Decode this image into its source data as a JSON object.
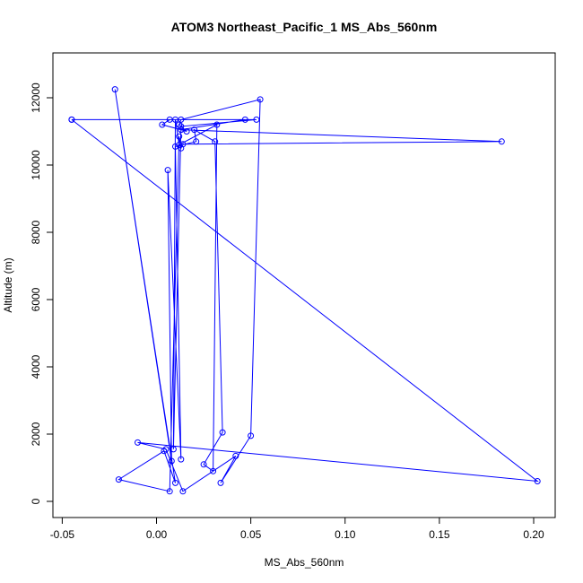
{
  "chart_data": {
    "type": "line",
    "title": "ATOM3 Northeast_Pacific_1 MS_Abs_560nm",
    "xlabel": "MS_Abs_560nm",
    "ylabel": "Altitude (m)",
    "xlim": [
      -0.05,
      0.2
    ],
    "ylim": [
      0,
      12000
    ],
    "x_ticks": [
      -0.05,
      0.0,
      0.05,
      0.1,
      0.15,
      0.2
    ],
    "x_tick_labels": [
      "-0.05",
      "0.00",
      "0.05",
      "0.10",
      "0.15",
      "0.20"
    ],
    "y_ticks": [
      0,
      2000,
      4000,
      6000,
      8000,
      10000,
      12000
    ],
    "y_tick_labels": [
      "0",
      "2000",
      "4000",
      "6000",
      "8000",
      "10000",
      "12000"
    ],
    "grid": false,
    "markers": "open-circle",
    "color": "#0000ff",
    "series": [
      {
        "points": [
          [
            -0.045,
            11350
          ],
          [
            0.047,
            11350
          ],
          [
            0.013,
            11050
          ],
          [
            0.183,
            10700
          ],
          [
            0.014,
            10620
          ],
          [
            0.013,
            10500
          ],
          [
            0.012,
            10850
          ],
          [
            0.007,
            300
          ],
          [
            -0.02,
            650
          ],
          [
            0.004,
            1500
          ],
          [
            0.01,
            550
          ],
          [
            -0.022,
            12250
          ],
          [
            0.008,
            1200
          ],
          [
            0.006,
            9850
          ],
          [
            0.013,
            1250
          ],
          [
            0.01,
            10550
          ],
          [
            0.021,
            10700
          ],
          [
            0.02,
            11050
          ],
          [
            0.031,
            10700
          ],
          [
            0.035,
            2050
          ],
          [
            0.025,
            1100
          ],
          [
            0.03,
            900
          ],
          [
            0.032,
            11200
          ],
          [
            0.012,
            10600
          ],
          [
            0.01,
            11350
          ],
          [
            0.009,
            1550
          ],
          [
            0.013,
            11150
          ],
          [
            0.053,
            11350
          ],
          [
            0.007,
            11350
          ],
          [
            0.003,
            11200
          ],
          [
            0.013,
            11050
          ],
          [
            0.016,
            11000
          ],
          [
            0.012,
            11200
          ],
          [
            0.013,
            11350
          ],
          [
            0.055,
            11950
          ],
          [
            0.05,
            1950
          ],
          [
            0.034,
            550
          ],
          [
            0.042,
            1350
          ],
          [
            0.014,
            300
          ],
          [
            0.005,
            1550
          ],
          [
            -0.01,
            1750
          ],
          [
            0.202,
            600
          ],
          [
            -0.045,
            11350
          ]
        ]
      }
    ]
  }
}
